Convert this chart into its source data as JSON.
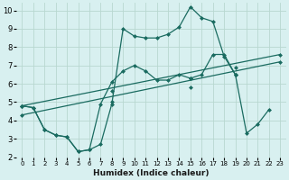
{
  "xlabel": "Humidex (Indice chaleur)",
  "bg_color": "#d8f0f0",
  "line_color": "#1a6b60",
  "grid_color": "#b8d8d0",
  "xlim": [
    -0.5,
    23.5
  ],
  "ylim": [
    2,
    10.4
  ],
  "xticks": [
    0,
    1,
    2,
    3,
    4,
    5,
    6,
    7,
    8,
    9,
    10,
    11,
    12,
    13,
    14,
    15,
    16,
    17,
    18,
    19,
    20,
    21,
    22,
    23
  ],
  "yticks": [
    2,
    3,
    4,
    5,
    6,
    7,
    8,
    9,
    10
  ],
  "line1_x": [
    0,
    1,
    2,
    3,
    4,
    5,
    6,
    7,
    8,
    9,
    10,
    11,
    12,
    13,
    14,
    15,
    16,
    17,
    18,
    19,
    20,
    21,
    22
  ],
  "line1_y": [
    4.8,
    4.7,
    3.5,
    3.2,
    3.1,
    2.3,
    2.4,
    2.7,
    4.9,
    9.0,
    8.6,
    8.5,
    8.5,
    8.7,
    9.1,
    10.2,
    9.6,
    9.4,
    7.5,
    6.5,
    3.3,
    3.8,
    4.6
  ],
  "line2_x": [
    0,
    1,
    2,
    3,
    4,
    5,
    6,
    7,
    8,
    9,
    10,
    11,
    12,
    13,
    14,
    15,
    16,
    17,
    18,
    19
  ],
  "line2_y": [
    4.8,
    4.7,
    3.5,
    3.2,
    3.1,
    2.3,
    2.4,
    4.9,
    6.1,
    6.7,
    7.0,
    6.7,
    6.2,
    6.2,
    6.5,
    6.3,
    6.5,
    7.6,
    7.6,
    6.5
  ],
  "line3_x": [
    0,
    23
  ],
  "line3_y": [
    4.8,
    7.6
  ],
  "line4_x": [
    0,
    23
  ],
  "line4_y": [
    4.3,
    7.2
  ],
  "marker3_x": [
    0,
    8,
    15,
    19,
    23
  ],
  "marker3_y": [
    4.8,
    5.6,
    6.3,
    6.9,
    7.6
  ],
  "marker4_x": [
    0,
    8,
    15,
    19,
    23
  ],
  "marker4_y": [
    4.3,
    5.0,
    5.8,
    6.5,
    7.2
  ]
}
